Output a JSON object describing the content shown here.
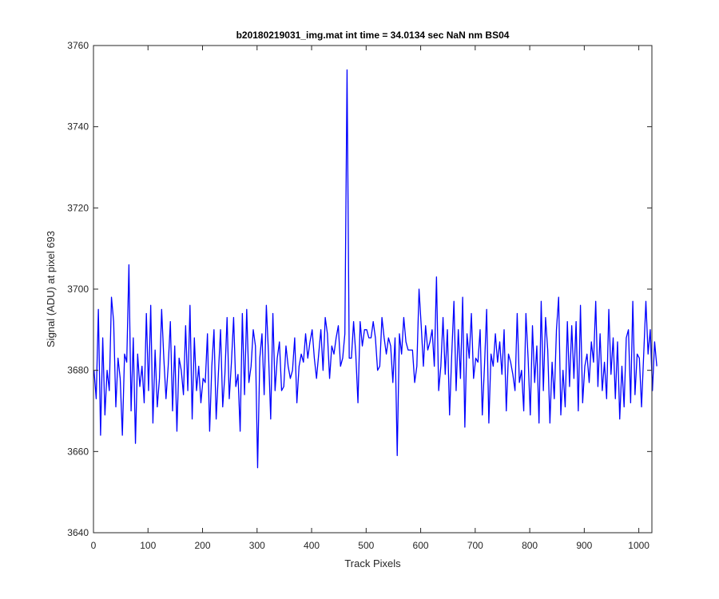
{
  "chart_data": {
    "type": "line",
    "title": "b20180219031_img.mat int time = 34.0134 sec  NaN nm BS04",
    "xlabel": "Track Pixels",
    "ylabel": "Signal (ADU) at pixel 693",
    "xlim": [
      0,
      1024
    ],
    "ylim": [
      3640,
      3760
    ],
    "xticks": [
      0,
      100,
      200,
      300,
      400,
      500,
      600,
      700,
      800,
      900,
      1000
    ],
    "yticks": [
      3640,
      3660,
      3680,
      3700,
      3720,
      3740,
      3760
    ],
    "grid": false,
    "legend": "none",
    "series": [
      {
        "color": "#0000ff",
        "x_start": 1,
        "x_step": 4,
        "values": [
          3680,
          3673,
          3695,
          3664,
          3688,
          3669,
          3680,
          3675,
          3698,
          3692,
          3671,
          3683,
          3678,
          3664,
          3684,
          3682,
          3706,
          3670,
          3688,
          3662,
          3684,
          3676,
          3681,
          3672,
          3694,
          3675,
          3696,
          3667,
          3685,
          3671,
          3678,
          3695,
          3683,
          3673,
          3681,
          3692,
          3670,
          3686,
          3665,
          3683,
          3680,
          3674,
          3691,
          3675,
          3696,
          3668,
          3688,
          3675,
          3681,
          3672,
          3678,
          3677,
          3689,
          3665,
          3681,
          3690,
          3668,
          3679,
          3690,
          3671,
          3679,
          3693,
          3673,
          3682,
          3693,
          3676,
          3679,
          3665,
          3694,
          3674,
          3695,
          3677,
          3681,
          3690,
          3686,
          3656,
          3683,
          3689,
          3674,
          3696,
          3684,
          3668,
          3694,
          3675,
          3683,
          3687,
          3675,
          3676,
          3686,
          3681,
          3678,
          3680,
          3688,
          3672,
          3681,
          3684,
          3682,
          3689,
          3683,
          3687,
          3690,
          3683,
          3678,
          3684,
          3690,
          3680,
          3693,
          3689,
          3678,
          3686,
          3684,
          3688,
          3691,
          3681,
          3683,
          3689,
          3754,
          3683,
          3683,
          3692,
          3684,
          3672,
          3692,
          3686,
          3690,
          3690,
          3688,
          3688,
          3692,
          3688,
          3680,
          3681,
          3693,
          3688,
          3684,
          3688,
          3686,
          3677,
          3688,
          3659,
          3689,
          3684,
          3693,
          3687,
          3685,
          3685,
          3685,
          3677,
          3681,
          3700,
          3691,
          3681,
          3691,
          3685,
          3687,
          3690,
          3681,
          3703,
          3675,
          3681,
          3693,
          3679,
          3690,
          3669,
          3684,
          3697,
          3675,
          3690,
          3678,
          3698,
          3666,
          3689,
          3683,
          3694,
          3678,
          3683,
          3682,
          3690,
          3669,
          3681,
          3695,
          3667,
          3684,
          3681,
          3689,
          3682,
          3687,
          3679,
          3690,
          3670,
          3684,
          3682,
          3679,
          3675,
          3694,
          3677,
          3680,
          3670,
          3694,
          3683,
          3669,
          3691,
          3677,
          3686,
          3667,
          3697,
          3675,
          3693,
          3685,
          3667,
          3682,
          3673,
          3690,
          3698,
          3669,
          3680,
          3671,
          3692,
          3676,
          3691,
          3678,
          3692,
          3670,
          3696,
          3672,
          3681,
          3684,
          3677,
          3687,
          3682,
          3697,
          3676,
          3689,
          3675,
          3682,
          3673,
          3695,
          3679,
          3688,
          3673,
          3687,
          3668,
          3681,
          3671,
          3688,
          3690,
          3672,
          3697,
          3674,
          3684,
          3683,
          3671,
          3684,
          3697,
          3684,
          3690,
          3675,
          3687,
          3681
        ]
      }
    ]
  }
}
